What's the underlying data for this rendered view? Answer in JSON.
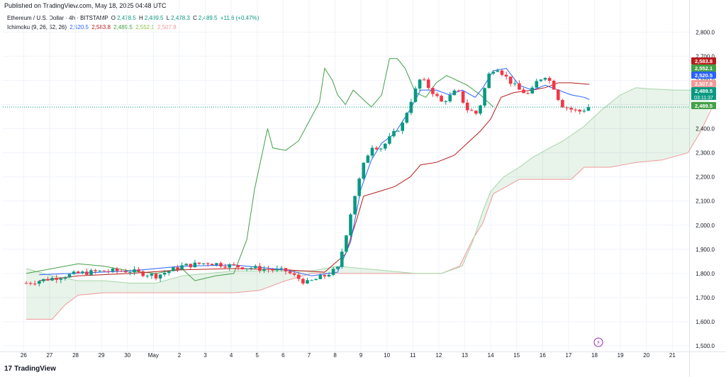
{
  "published": "Published on TradingView.com, May 18, 2025 04:48 UTC",
  "legend": {
    "symbol": "Ethereum / U.S. Dollar · 4h · BITSTAMP",
    "o_label": "O",
    "o_value": "2,478.5",
    "h_label": "H",
    "h_value": "2,489.5",
    "l_label": "L",
    "l_value": "2,478.3",
    "c_label": "C",
    "c_value": "2,489.5",
    "change": "+11.6 (+0.47%)",
    "indicator": "Ichimoku (9, 26, 52, 26)",
    "ind_values": [
      "2,520.5",
      "2,583.8",
      "2,489.5",
      "2,552.1",
      "2,507.8"
    ]
  },
  "footer": {
    "brand": "TradingView"
  },
  "colors": {
    "up": "#089981",
    "down": "#f23645",
    "tenkan": "#2962ff",
    "kijun": "#b71c1c",
    "chikou": "#43a047",
    "spanA": "#a5d6a7",
    "spanB": "#ef9a9a",
    "cloudUp": "rgba(67,160,71,0.12)",
    "cloudDown": "rgba(244,67,54,0.12)"
  },
  "chart_data": {
    "type": "candlestick",
    "title": "Ethereum / U.S. Dollar · 4h · BITSTAMP",
    "ylim": [
      1500,
      2850
    ],
    "y_ticks": [
      1500,
      1600,
      1700,
      1800,
      1900,
      2000,
      2100,
      2200,
      2300,
      2400,
      2500,
      2600,
      2700,
      2800
    ],
    "y_tick_labels": [
      "1,500.0",
      "1,600.0",
      "1,700.0",
      "1,800.0",
      "1,900.0",
      "2,000.0",
      "2,100.0",
      "2,200.0",
      "2,300.0",
      "2,400.0",
      "2,500.0",
      "2,600.0",
      "2,700.0",
      "2,800.0"
    ],
    "x_labels": [
      {
        "t": -0.1,
        "label": "26"
      },
      {
        "t": 0.9,
        "label": "27"
      },
      {
        "t": 1.9,
        "label": "28"
      },
      {
        "t": 2.9,
        "label": "29"
      },
      {
        "t": 3.9,
        "label": "30"
      },
      {
        "t": 4.9,
        "label": "May"
      },
      {
        "t": 5.9,
        "label": "2"
      },
      {
        "t": 6.9,
        "label": "3"
      },
      {
        "t": 7.9,
        "label": "4"
      },
      {
        "t": 8.9,
        "label": "5"
      },
      {
        "t": 9.9,
        "label": "6"
      },
      {
        "t": 10.9,
        "label": "7"
      },
      {
        "t": 11.9,
        "label": "8"
      },
      {
        "t": 12.9,
        "label": "9"
      },
      {
        "t": 13.9,
        "label": "10"
      },
      {
        "t": 14.9,
        "label": "11"
      },
      {
        "t": 15.9,
        "label": "12"
      },
      {
        "t": 16.9,
        "label": "13"
      },
      {
        "t": 17.9,
        "label": "14"
      },
      {
        "t": 18.9,
        "label": "15"
      },
      {
        "t": 19.9,
        "label": "16"
      },
      {
        "t": 20.9,
        "label": "17"
      },
      {
        "t": 21.9,
        "label": "18"
      },
      {
        "t": 22.9,
        "label": "19"
      },
      {
        "t": 23.9,
        "label": "20"
      },
      {
        "t": 24.9,
        "label": "21"
      }
    ],
    "price_labels": [
      {
        "value": 2583.8,
        "label": "2,583.8",
        "color": "#b71c1c"
      },
      {
        "value": 2552.1,
        "label": "2,552.1",
        "color": "#43a047"
      },
      {
        "value": 2520.5,
        "label": "2,520.5",
        "color": "#2962ff"
      },
      {
        "value": 2507.8,
        "label": "2,507.8",
        "color": "#ef9a9a"
      },
      {
        "value": 2489.5,
        "label": "2,489.5",
        "color": "#089981",
        "sub": "03:11:37"
      },
      {
        "value": 2489.5,
        "label": "2,489.5",
        "color": "#43a047"
      }
    ],
    "current_price": 2489.5,
    "anchors": [
      [
        0,
        1760
      ],
      [
        1,
        1780
      ],
      [
        2,
        1800
      ],
      [
        3,
        1810
      ],
      [
        4,
        1810
      ],
      [
        5,
        1790
      ],
      [
        6,
        1830
      ],
      [
        7,
        1845
      ],
      [
        8,
        1830
      ],
      [
        9,
        1820
      ],
      [
        10,
        1810
      ],
      [
        10.8,
        1760
      ],
      [
        11.5,
        1790
      ],
      [
        12,
        1820
      ],
      [
        12.3,
        1950
      ],
      [
        12.6,
        2100
      ],
      [
        13,
        2250
      ],
      [
        13.3,
        2330
      ],
      [
        13.7,
        2320
      ],
      [
        14,
        2360
      ],
      [
        14.5,
        2420
      ],
      [
        14.8,
        2510
      ],
      [
        15.2,
        2610
      ],
      [
        15.6,
        2560
      ],
      [
        16,
        2510
      ],
      [
        16.3,
        2530
      ],
      [
        16.6,
        2560
      ],
      [
        17,
        2480
      ],
      [
        17.4,
        2460
      ],
      [
        17.8,
        2620
      ],
      [
        18.1,
        2660
      ],
      [
        18.6,
        2600
      ],
      [
        19,
        2560
      ],
      [
        19.4,
        2540
      ],
      [
        19.7,
        2600
      ],
      [
        20,
        2620
      ],
      [
        20.3,
        2580
      ],
      [
        20.6,
        2500
      ],
      [
        21,
        2480
      ],
      [
        21.3,
        2470
      ],
      [
        21.7,
        2489.5
      ]
    ],
    "tenkan_anchors": [
      [
        0.5,
        1795
      ],
      [
        4,
        1810
      ],
      [
        6,
        1830
      ],
      [
        8,
        1835
      ],
      [
        10,
        1815
      ],
      [
        11,
        1790
      ],
      [
        12,
        1805
      ],
      [
        12.5,
        1930
      ],
      [
        12.9,
        2150
      ],
      [
        13.3,
        2270
      ],
      [
        13.7,
        2340
      ],
      [
        14.2,
        2380
      ],
      [
        14.8,
        2480
      ],
      [
        15.2,
        2560
      ],
      [
        15.8,
        2560
      ],
      [
        16.3,
        2540
      ],
      [
        16.8,
        2560
      ],
      [
        17.3,
        2530
      ],
      [
        17.6,
        2570
      ],
      [
        18,
        2640
      ],
      [
        18.5,
        2650
      ],
      [
        19,
        2580
      ],
      [
        19.5,
        2560
      ],
      [
        20,
        2580
      ],
      [
        20.5,
        2560
      ],
      [
        21,
        2540
      ],
      [
        21.5,
        2530
      ],
      [
        21.7,
        2520.5
      ]
    ],
    "kijun_anchors": [
      [
        0.5,
        1770
      ],
      [
        2,
        1790
      ],
      [
        4,
        1800
      ],
      [
        6,
        1815
      ],
      [
        8,
        1820
      ],
      [
        10,
        1815
      ],
      [
        11.5,
        1805
      ],
      [
        12.3,
        1880
      ],
      [
        12.7,
        2010
      ],
      [
        13,
        2120
      ],
      [
        13.6,
        2140
      ],
      [
        14.2,
        2160
      ],
      [
        14.8,
        2200
      ],
      [
        15.2,
        2250
      ],
      [
        15.8,
        2260
      ],
      [
        16.5,
        2290
      ],
      [
        17,
        2340
      ],
      [
        17.5,
        2390
      ],
      [
        17.9,
        2440
      ],
      [
        18.3,
        2530
      ],
      [
        18.8,
        2550
      ],
      [
        19.5,
        2560
      ],
      [
        20,
        2570
      ],
      [
        20.5,
        2590
      ],
      [
        21,
        2590
      ],
      [
        21.7,
        2583.8
      ]
    ],
    "chikou_anchors": [
      [
        0,
        1800
      ],
      [
        1,
        1820
      ],
      [
        2,
        1840
      ],
      [
        3,
        1830
      ],
      [
        4,
        1810
      ],
      [
        5,
        1800
      ],
      [
        6,
        1820
      ],
      [
        6.5,
        1770
      ],
      [
        7.3,
        1790
      ],
      [
        8,
        1800
      ],
      [
        8.5,
        1940
      ],
      [
        8.8,
        2150
      ],
      [
        9.3,
        2400
      ],
      [
        9.5,
        2320
      ],
      [
        10,
        2310
      ],
      [
        10.5,
        2350
      ],
      [
        11.0,
        2450
      ],
      [
        11.3,
        2510
      ],
      [
        11.5,
        2650
      ],
      [
        11.8,
        2600
      ],
      [
        12,
        2540
      ],
      [
        12.3,
        2500
      ],
      [
        12.6,
        2560
      ],
      [
        13.0,
        2520
      ],
      [
        13.3,
        2490
      ],
      [
        13.7,
        2540
      ],
      [
        14,
        2690
      ],
      [
        14.3,
        2690
      ],
      [
        14.6,
        2650
      ],
      [
        15,
        2550
      ],
      [
        15.4,
        2530
      ],
      [
        15.8,
        2590
      ],
      [
        16.2,
        2620
      ],
      [
        16.6,
        2600
      ],
      [
        17,
        2580
      ],
      [
        17.5,
        2540
      ],
      [
        18,
        2490
      ]
    ],
    "spanA_anchors": [
      [
        0,
        1820
      ],
      [
        1,
        1790
      ],
      [
        2,
        1770
      ],
      [
        3,
        1770
      ],
      [
        4,
        1760
      ],
      [
        5,
        1760
      ],
      [
        6,
        1790
      ],
      [
        7,
        1800
      ],
      [
        8,
        1810
      ],
      [
        9,
        1810
      ],
      [
        10,
        1810
      ],
      [
        11,
        1810
      ],
      [
        12,
        1830
      ],
      [
        13,
        1820
      ],
      [
        14,
        1810
      ],
      [
        15,
        1800
      ],
      [
        16,
        1800
      ],
      [
        16.8,
        1830
      ],
      [
        17.2,
        1930
      ],
      [
        17.6,
        2060
      ],
      [
        17.9,
        2140
      ],
      [
        18.4,
        2200
      ],
      [
        19,
        2240
      ],
      [
        19.5,
        2280
      ],
      [
        20,
        2310
      ],
      [
        20.7,
        2350
      ],
      [
        21.5,
        2410
      ],
      [
        22.2,
        2480
      ],
      [
        22.9,
        2540
      ],
      [
        23.5,
        2570
      ],
      [
        24,
        2565
      ],
      [
        25,
        2560
      ],
      [
        26,
        2560
      ],
      [
        26.4,
        2570
      ]
    ],
    "spanB_anchors": [
      [
        0,
        1610
      ],
      [
        1,
        1610
      ],
      [
        1.5,
        1670
      ],
      [
        2,
        1710
      ],
      [
        3,
        1720
      ],
      [
        4,
        1720
      ],
      [
        5,
        1720
      ],
      [
        6,
        1720
      ],
      [
        7,
        1720
      ],
      [
        8,
        1720
      ],
      [
        9,
        1730
      ],
      [
        10,
        1770
      ],
      [
        11,
        1800
      ],
      [
        12,
        1800
      ],
      [
        13,
        1800
      ],
      [
        14,
        1800
      ],
      [
        15,
        1800
      ],
      [
        16,
        1800
      ],
      [
        16.7,
        1830
      ],
      [
        17.2,
        1940
      ],
      [
        17.6,
        2010
      ],
      [
        18,
        2130
      ],
      [
        18.5,
        2160
      ],
      [
        19,
        2190
      ],
      [
        19.5,
        2190
      ],
      [
        20,
        2190
      ],
      [
        20.5,
        2190
      ],
      [
        21,
        2190
      ],
      [
        21.5,
        2240
      ],
      [
        22.5,
        2240
      ],
      [
        23.5,
        2260
      ],
      [
        24.5,
        2270
      ],
      [
        25.5,
        2300
      ],
      [
        26,
        2390
      ],
      [
        26.4,
        2480
      ]
    ]
  }
}
